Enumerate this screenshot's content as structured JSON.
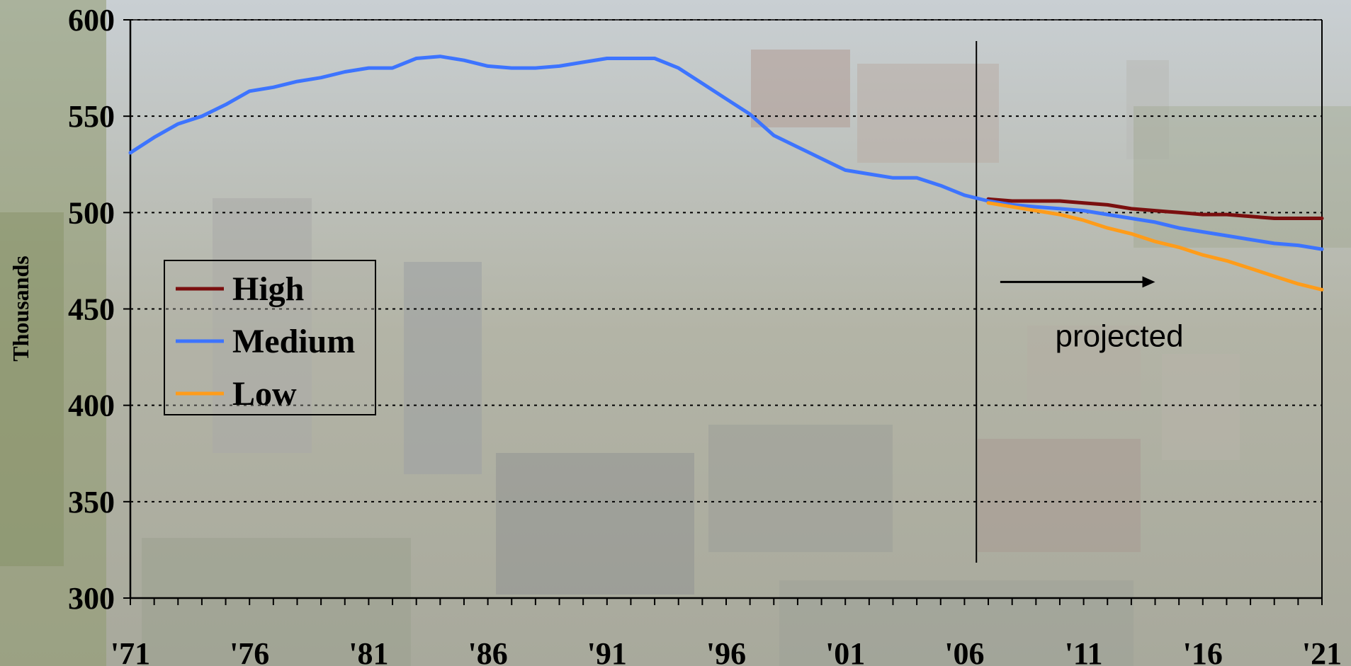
{
  "chart_data": {
    "type": "line",
    "title": "",
    "xlabel": "",
    "ylabel": "Thousands",
    "xlim": [
      1971,
      2021
    ],
    "ylim": [
      300,
      600
    ],
    "yticks": [
      300,
      350,
      400,
      450,
      500,
      550,
      600
    ],
    "xticks": [
      {
        "value": 1971,
        "label": "'71"
      },
      {
        "value": 1976,
        "label": "'76"
      },
      {
        "value": 1981,
        "label": "'81"
      },
      {
        "value": 1986,
        "label": "'86"
      },
      {
        "value": 1991,
        "label": "'91"
      },
      {
        "value": 1996,
        "label": "'96"
      },
      {
        "value": 2001,
        "label": "'01"
      },
      {
        "value": 2006,
        "label": "'06"
      },
      {
        "value": 2011,
        "label": "'11"
      },
      {
        "value": 2016,
        "label": "'16"
      },
      {
        "value": 2021,
        "label": "'21"
      }
    ],
    "grid": "horizontal dotted",
    "legend_position": "left",
    "series": [
      {
        "name": "High",
        "color": "#7a0f0f",
        "x": [
          2007,
          2008,
          2009,
          2010,
          2011,
          2012,
          2013,
          2014,
          2015,
          2016,
          2017,
          2018,
          2019,
          2020,
          2021
        ],
        "y": [
          507,
          506,
          506,
          506,
          505,
          504,
          502,
          501,
          500,
          499,
          499,
          498,
          497,
          497,
          497
        ]
      },
      {
        "name": "Medium",
        "color": "#3d74ff",
        "x": [
          1971,
          1972,
          1973,
          1974,
          1975,
          1976,
          1977,
          1978,
          1979,
          1980,
          1981,
          1982,
          1983,
          1984,
          1985,
          1986,
          1987,
          1988,
          1989,
          1990,
          1991,
          1992,
          1993,
          1994,
          1995,
          1996,
          1997,
          1998,
          1999,
          2000,
          2001,
          2002,
          2003,
          2004,
          2005,
          2006,
          2007,
          2008,
          2009,
          2010,
          2011,
          2012,
          2013,
          2014,
          2015,
          2016,
          2017,
          2018,
          2019,
          2020,
          2021
        ],
        "y": [
          531,
          539,
          546,
          550,
          556,
          563,
          565,
          568,
          570,
          573,
          575,
          575,
          580,
          581,
          579,
          576,
          575,
          575,
          576,
          578,
          580,
          580,
          580,
          575,
          567,
          559,
          551,
          540,
          534,
          528,
          522,
          520,
          518,
          518,
          514,
          509,
          506,
          504,
          503,
          502,
          501,
          499,
          497,
          495,
          492,
          490,
          488,
          486,
          484,
          483,
          481
        ]
      },
      {
        "name": "Low",
        "color": "#ff9c1a",
        "x": [
          2007,
          2008,
          2009,
          2010,
          2011,
          2012,
          2013,
          2014,
          2015,
          2016,
          2017,
          2018,
          2019,
          2020,
          2021
        ],
        "y": [
          505,
          503,
          501,
          499,
          496,
          492,
          489,
          485,
          482,
          478,
          475,
          471,
          467,
          463,
          460
        ]
      }
    ],
    "annotations": [
      {
        "text": "projected",
        "divider_x": 2006.5,
        "arrow_from_x": 2007.5,
        "arrow_to_x": 2014,
        "arrow_y": 464,
        "text_x": 2012.5,
        "text_y": 436
      }
    ]
  }
}
